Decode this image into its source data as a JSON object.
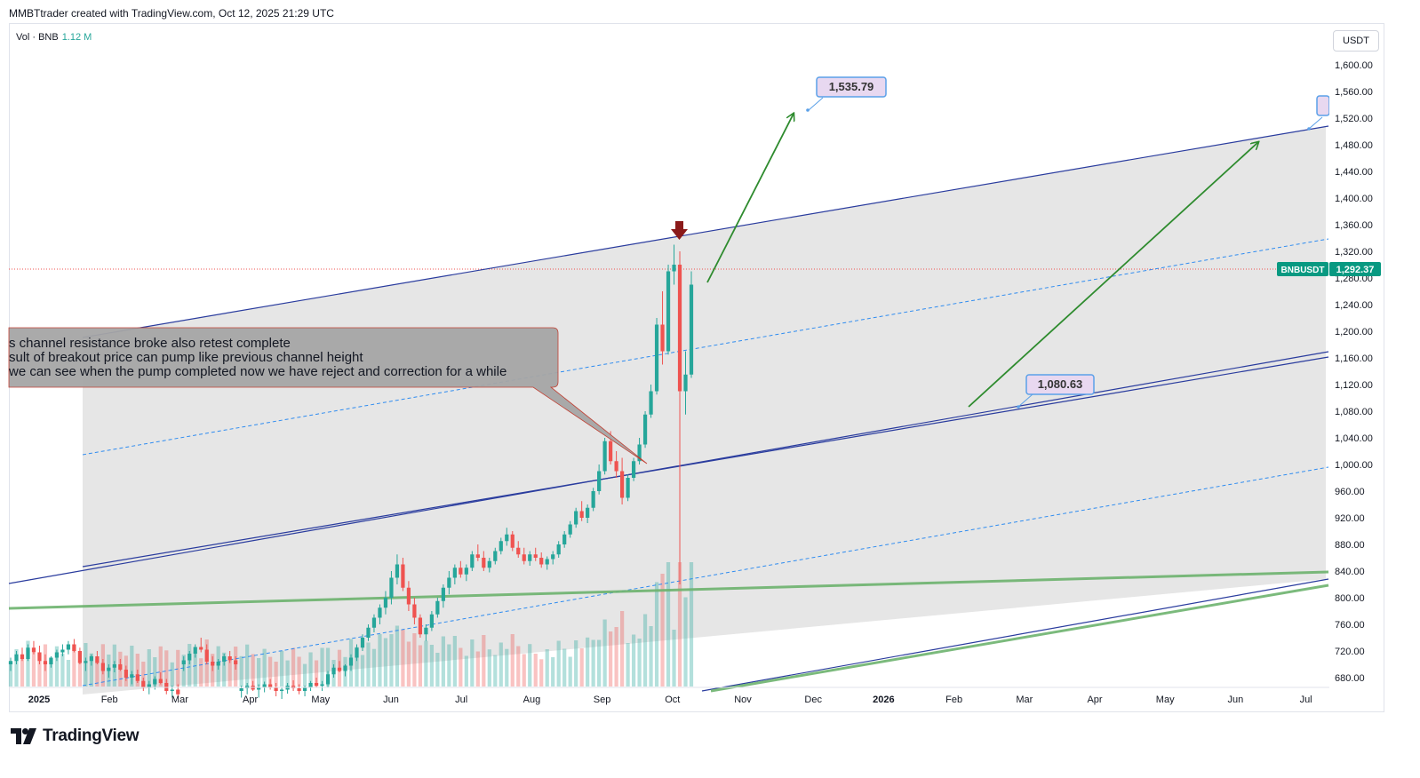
{
  "header": {
    "attribution": "MMBTtrader created with TradingView.com, Oct 12, 2025 21:29 UTC"
  },
  "volume": {
    "label": "Vol · BNB",
    "value": "1.12 M"
  },
  "currency": "USDT",
  "footer": {
    "brand": "TradingView"
  },
  "colors": {
    "up": "#26a69a",
    "down": "#ef5350",
    "channel": "#2a3c9e",
    "dashed": "#2f8cf0",
    "green_line": "#6db36e",
    "arrow": "#2e8b2e",
    "ticker_bg": "#089981",
    "marker": "#8b1a1a"
  },
  "chart_data": {
    "type": "candlestick",
    "symbol": "BNBUSDT",
    "last_price": "1,292.37",
    "y_ticks": [
      "1,600.00",
      "1,560.00",
      "1,520.00",
      "1,480.00",
      "1,440.00",
      "1,400.00",
      "1,360.00",
      "1,320.00",
      "1,280.00",
      "1,240.00",
      "1,200.00",
      "1,160.00",
      "1,120.00",
      "1,080.00",
      "1,040.00",
      "1,000.00",
      "960.00",
      "920.00",
      "880.00",
      "840.00",
      "800.00",
      "760.00",
      "720.00",
      "680.00"
    ],
    "x_ticks": [
      {
        "label": "2025",
        "bold": true
      },
      {
        "label": "Feb"
      },
      {
        "label": "Mar"
      },
      {
        "label": "Apr"
      },
      {
        "label": "May"
      },
      {
        "label": "Jun"
      },
      {
        "label": "Jul"
      },
      {
        "label": "Aug"
      },
      {
        "label": "Sep"
      },
      {
        "label": "Oct"
      },
      {
        "label": "Nov"
      },
      {
        "label": "Dec"
      },
      {
        "label": "2026",
        "bold": true
      },
      {
        "label": "Feb"
      },
      {
        "label": "Mar"
      },
      {
        "label": "Apr"
      },
      {
        "label": "May"
      },
      {
        "label": "Jun"
      },
      {
        "label": "Jul"
      }
    ],
    "ylim": [
      660,
      1620
    ],
    "price_labels": [
      "1,535.79",
      "1,080.63"
    ],
    "annotation_lines": [
      "s channel resistance broke also retest complete",
      "sult of breakout price can pump like previous channel height",
      "we can see when the pump completed now we have reject and correction for a while"
    ],
    "candles": [
      [
        700,
        710,
        690,
        705
      ],
      [
        705,
        720,
        700,
        715
      ],
      [
        715,
        725,
        705,
        708
      ],
      [
        708,
        730,
        705,
        725
      ],
      [
        725,
        735,
        715,
        718
      ],
      [
        718,
        728,
        700,
        705
      ],
      [
        705,
        715,
        690,
        700
      ],
      [
        700,
        712,
        695,
        710
      ],
      [
        710,
        722,
        705,
        718
      ],
      [
        718,
        730,
        712,
        722
      ],
      [
        722,
        735,
        715,
        730
      ],
      [
        730,
        738,
        718,
        720
      ],
      [
        720,
        725,
        700,
        702
      ],
      [
        702,
        710,
        690,
        705
      ],
      [
        705,
        715,
        698,
        712
      ],
      [
        712,
        720,
        700,
        702
      ],
      [
        702,
        708,
        685,
        690
      ],
      [
        690,
        700,
        680,
        695
      ],
      [
        695,
        705,
        688,
        700
      ],
      [
        700,
        708,
        690,
        692
      ],
      [
        692,
        698,
        675,
        680
      ],
      [
        680,
        690,
        670,
        685
      ],
      [
        685,
        692,
        672,
        675
      ],
      [
        675,
        680,
        660,
        665
      ],
      [
        665,
        675,
        655,
        670
      ],
      [
        670,
        682,
        662,
        678
      ],
      [
        678,
        688,
        670,
        672
      ],
      [
        672,
        678,
        655,
        660
      ],
      [
        660,
        668,
        650,
        662
      ],
      [
        662,
        670,
        652,
        655
      ],
      [
        700,
        712,
        690,
        706
      ],
      [
        706,
        720,
        700,
        716
      ],
      [
        716,
        730,
        710,
        726
      ],
      [
        726,
        740,
        718,
        722
      ],
      [
        722,
        730,
        700,
        704
      ],
      [
        704,
        712,
        690,
        698
      ],
      [
        698,
        708,
        692,
        704
      ],
      [
        704,
        716,
        698,
        712
      ],
      [
        712,
        720,
        702,
        706
      ],
      [
        706,
        712,
        692,
        700
      ],
      [
        660,
        668,
        650,
        664
      ],
      [
        664,
        672,
        655,
        668
      ],
      [
        668,
        675,
        660,
        662
      ],
      [
        662,
        670,
        650,
        666
      ],
      [
        666,
        674,
        658,
        670
      ],
      [
        670,
        678,
        662,
        666
      ],
      [
        666,
        672,
        652,
        660
      ],
      [
        660,
        666,
        648,
        662
      ],
      [
        662,
        672,
        656,
        668
      ],
      [
        668,
        676,
        660,
        664
      ],
      [
        664,
        670,
        655,
        660
      ],
      [
        660,
        668,
        652,
        665
      ],
      [
        665,
        675,
        660,
        672
      ],
      [
        672,
        680,
        665,
        668
      ],
      [
        668,
        675,
        660,
        670
      ],
      [
        670,
        690,
        665,
        685
      ],
      [
        685,
        700,
        680,
        695
      ],
      [
        695,
        705,
        688,
        690
      ],
      [
        690,
        700,
        682,
        698
      ],
      [
        698,
        715,
        690,
        710
      ],
      [
        710,
        730,
        705,
        725
      ],
      [
        725,
        745,
        720,
        740
      ],
      [
        740,
        760,
        735,
        755
      ],
      [
        755,
        775,
        748,
        770
      ],
      [
        770,
        790,
        760,
        785
      ],
      [
        785,
        810,
        775,
        800
      ],
      [
        800,
        840,
        790,
        830
      ],
      [
        830,
        865,
        820,
        850
      ],
      [
        850,
        860,
        810,
        815
      ],
      [
        815,
        825,
        780,
        790
      ],
      [
        790,
        800,
        760,
        770
      ],
      [
        770,
        775,
        740,
        745
      ],
      [
        745,
        760,
        735,
        755
      ],
      [
        755,
        780,
        750,
        775
      ],
      [
        775,
        800,
        770,
        795
      ],
      [
        795,
        820,
        785,
        815
      ],
      [
        815,
        840,
        805,
        830
      ],
      [
        830,
        850,
        820,
        845
      ],
      [
        845,
        855,
        830,
        835
      ],
      [
        835,
        850,
        825,
        845
      ],
      [
        845,
        870,
        840,
        865
      ],
      [
        865,
        880,
        855,
        860
      ],
      [
        860,
        870,
        840,
        845
      ],
      [
        845,
        860,
        838,
        855
      ],
      [
        855,
        875,
        850,
        870
      ],
      [
        870,
        890,
        865,
        885
      ],
      [
        885,
        905,
        878,
        895
      ],
      [
        895,
        900,
        870,
        875
      ],
      [
        875,
        885,
        860,
        865
      ],
      [
        865,
        875,
        850,
        855
      ],
      [
        855,
        870,
        848,
        865
      ],
      [
        865,
        875,
        855,
        860
      ],
      [
        860,
        868,
        845,
        850
      ],
      [
        850,
        862,
        842,
        858
      ],
      [
        858,
        870,
        850,
        865
      ],
      [
        865,
        885,
        860,
        880
      ],
      [
        880,
        900,
        875,
        895
      ],
      [
        895,
        915,
        890,
        910
      ],
      [
        910,
        935,
        905,
        930
      ],
      [
        930,
        945,
        915,
        920
      ],
      [
        920,
        940,
        912,
        935
      ],
      [
        935,
        965,
        930,
        960
      ],
      [
        960,
        1000,
        955,
        990
      ],
      [
        990,
        1040,
        985,
        1035
      ],
      [
        1035,
        1050,
        1000,
        1005
      ],
      [
        1005,
        1020,
        980,
        990
      ],
      [
        990,
        1010,
        940,
        950
      ],
      [
        950,
        985,
        945,
        980
      ],
      [
        980,
        1010,
        975,
        1005
      ],
      [
        1005,
        1040,
        1000,
        1030
      ],
      [
        1030,
        1080,
        1025,
        1075
      ],
      [
        1075,
        1120,
        1070,
        1110
      ],
      [
        1110,
        1220,
        1105,
        1210
      ],
      [
        1210,
        1260,
        1150,
        1170
      ],
      [
        1170,
        1300,
        1165,
        1290
      ],
      [
        1290,
        1330,
        1270,
        1300
      ],
      [
        1300,
        1320,
        820,
        1110
      ],
      [
        1110,
        1170,
        1075,
        1135
      ],
      [
        1135,
        1290,
        1130,
        1270
      ]
    ]
  }
}
